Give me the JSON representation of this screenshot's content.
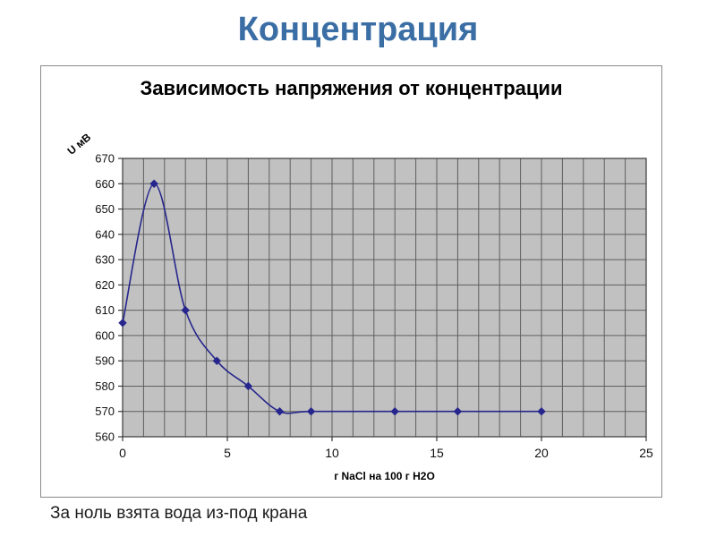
{
  "slide": {
    "title": "Концентрация",
    "caption": "За ноль взята вода из-под крана"
  },
  "colors": {
    "slide_title": "#3A6EA5",
    "line": "#26268C",
    "marker": "#26268C",
    "plot_bg": "#C1C1C1",
    "gridline": "#5F5F5F",
    "axis": "#3A3A3A",
    "tick_text": "#111111"
  },
  "chart_data": {
    "type": "line",
    "title": "Зависимость напряжения от концентрации",
    "xlabel": "г NaCl на 100 г H2O",
    "ylabel": "U мВ",
    "x": [
      0,
      1.5,
      3,
      4.5,
      6,
      7.5,
      9,
      13,
      16,
      20
    ],
    "y": [
      605,
      660,
      610,
      590,
      580,
      570,
      570,
      570,
      570,
      570
    ],
    "xlim": [
      0,
      25
    ],
    "ylim": [
      560,
      670
    ],
    "x_major_ticks": [
      0,
      5,
      10,
      15,
      20,
      25
    ],
    "y_major_ticks": [
      560,
      570,
      580,
      590,
      600,
      610,
      620,
      630,
      640,
      650,
      660,
      670
    ],
    "x_minor_grid_step": 1,
    "grid": true,
    "legend_position": "none",
    "line_style": "smoothed",
    "marker_shape": "diamond"
  }
}
